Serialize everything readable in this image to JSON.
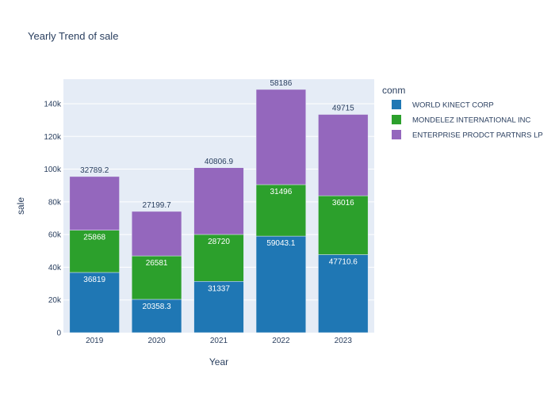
{
  "chart_data": {
    "type": "bar",
    "barmode": "stack",
    "title": "Yearly Trend of sale",
    "xlabel": "Year",
    "ylabel": "sale",
    "categories": [
      "2019",
      "2020",
      "2021",
      "2022",
      "2023"
    ],
    "ylim": [
      0,
      155000
    ],
    "yticks": [
      0,
      20000,
      40000,
      60000,
      80000,
      100000,
      120000,
      140000
    ],
    "ytick_labels": [
      "0",
      "20k",
      "40k",
      "60k",
      "80k",
      "100k",
      "120k",
      "140k"
    ],
    "grid": true,
    "legend_title": "conm",
    "legend_position": "right",
    "series": [
      {
        "name": "WORLD KINECT CORP",
        "color": "#1f77b4",
        "values": [
          36819,
          20358.3,
          31337,
          59043.1,
          47710.6
        ],
        "labels": [
          "36819",
          "20358.3",
          "31337",
          "59043.1",
          "47710.6"
        ]
      },
      {
        "name": "MONDELEZ INTERNATIONAL INC",
        "color": "#2ca02c",
        "values": [
          25868,
          26581,
          28720,
          31496,
          36016
        ],
        "labels": [
          "25868",
          "26581",
          "28720",
          "31496",
          "36016"
        ]
      },
      {
        "name": "ENTERPRISE PRODCT PARTNRS LP",
        "color": "#9467bd",
        "values": [
          32789.2,
          27199.7,
          40806.9,
          58186,
          49715
        ],
        "labels": [
          "32789.2",
          "27199.7",
          "40806.9",
          "58186",
          "49715"
        ]
      }
    ]
  }
}
